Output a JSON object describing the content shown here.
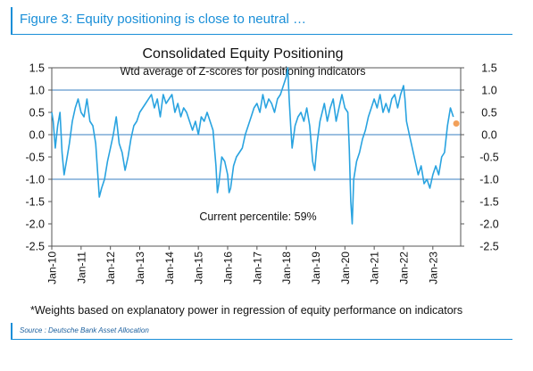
{
  "figure": {
    "title": "Figure 3: Equity positioning is close to neutral …",
    "footnote": "*Weights based on explanatory power in regression of equity performance on indicators",
    "source": "Source : Deutsche Bank Asset Allocation"
  },
  "colors": {
    "accent": "#1a8fd8",
    "line": "#29a3e0",
    "marker": "#f2a05a",
    "reference": "#3a7fc0"
  },
  "chart_data": {
    "type": "line",
    "title": "Consolidated Equity Positioning",
    "subtitle": "Wtd average of Z-scores for positioning indicators",
    "annotation": "Current percentile: 59%",
    "ylim": [
      -2.5,
      1.5
    ],
    "y_ticks": [
      "1.5",
      "1.0",
      "0.5",
      "0.0",
      "-0.5",
      "-1.0",
      "-1.5",
      "-2.0",
      "-2.5"
    ],
    "x_ticks": [
      "Jan-10",
      "Jan-11",
      "Jan-12",
      "Jan-13",
      "Jan-14",
      "Jan-15",
      "Jan-16",
      "Jan-17",
      "Jan-18",
      "Jan-19",
      "Jan-20",
      "Jan-21",
      "Jan-22",
      "Jan-23"
    ],
    "x_range": [
      2010.0,
      2023.95
    ],
    "reference_lines": [
      1.0,
      0.0,
      -1.0
    ],
    "grid": false,
    "series": [
      {
        "x": [
          2010.0,
          2010.05,
          2010.12,
          2010.2,
          2010.28,
          2010.35,
          2010.42,
          2010.5,
          2010.6,
          2010.7,
          2010.8,
          2010.9,
          2011.0,
          2011.1,
          2011.2,
          2011.3,
          2011.4,
          2011.5,
          2011.58,
          2011.62,
          2011.7,
          2011.8,
          2011.9,
          2012.0,
          2012.1,
          2012.2,
          2012.3,
          2012.4,
          2012.5,
          2012.6,
          2012.7,
          2012.8,
          2012.9,
          2013.0,
          2013.2,
          2013.4,
          2013.5,
          2013.6,
          2013.7,
          2013.8,
          2013.9,
          2014.0,
          2014.1,
          2014.2,
          2014.3,
          2014.4,
          2014.5,
          2014.6,
          2014.7,
          2014.8,
          2014.9,
          2015.0,
          2015.1,
          2015.2,
          2015.3,
          2015.4,
          2015.5,
          2015.6,
          2015.65,
          2015.7,
          2015.8,
          2015.9,
          2016.0,
          2016.05,
          2016.1,
          2016.2,
          2016.3,
          2016.4,
          2016.5,
          2016.6,
          2016.7,
          2016.8,
          2016.9,
          2017.0,
          2017.1,
          2017.2,
          2017.3,
          2017.4,
          2017.5,
          2017.6,
          2017.7,
          2017.8,
          2017.9,
          2018.0,
          2018.05,
          2018.1,
          2018.15,
          2018.2,
          2018.3,
          2018.4,
          2018.5,
          2018.6,
          2018.7,
          2018.8,
          2018.9,
          2018.97,
          2019.05,
          2019.15,
          2019.3,
          2019.4,
          2019.5,
          2019.6,
          2019.7,
          2019.8,
          2019.9,
          2020.0,
          2020.1,
          2020.15,
          2020.2,
          2020.25,
          2020.3,
          2020.4,
          2020.5,
          2020.6,
          2020.7,
          2020.8,
          2020.9,
          2021.0,
          2021.1,
          2021.2,
          2021.3,
          2021.4,
          2021.5,
          2021.6,
          2021.7,
          2021.8,
          2021.9,
          2022.0,
          2022.05,
          2022.1,
          2022.2,
          2022.3,
          2022.4,
          2022.5,
          2022.6,
          2022.7,
          2022.8,
          2022.9,
          2023.0,
          2023.1,
          2023.2,
          2023.3,
          2023.4,
          2023.5,
          2023.6,
          2023.7
        ],
        "values": [
          0.5,
          0.3,
          -0.3,
          0.2,
          0.5,
          -0.4,
          -0.9,
          -0.6,
          -0.2,
          0.3,
          0.6,
          0.8,
          0.5,
          0.4,
          0.8,
          0.3,
          0.2,
          -0.2,
          -1.0,
          -1.4,
          -1.2,
          -1.0,
          -0.6,
          -0.3,
          0.0,
          0.4,
          -0.2,
          -0.4,
          -0.8,
          -0.5,
          -0.1,
          0.2,
          0.3,
          0.5,
          0.7,
          0.9,
          0.6,
          0.8,
          0.4,
          0.9,
          0.7,
          0.8,
          0.9,
          0.5,
          0.7,
          0.4,
          0.6,
          0.5,
          0.3,
          0.1,
          0.3,
          0.0,
          0.4,
          0.3,
          0.5,
          0.3,
          0.1,
          -0.7,
          -1.3,
          -1.1,
          -0.5,
          -0.6,
          -0.9,
          -1.3,
          -1.2,
          -0.7,
          -0.5,
          -0.4,
          -0.3,
          0.0,
          0.2,
          0.4,
          0.6,
          0.7,
          0.5,
          0.9,
          0.6,
          0.8,
          0.7,
          0.5,
          0.8,
          0.9,
          1.1,
          1.3,
          1.5,
          0.8,
          0.2,
          -0.3,
          0.2,
          0.4,
          0.5,
          0.3,
          0.6,
          0.2,
          -0.6,
          -0.8,
          -0.2,
          0.3,
          0.7,
          0.3,
          0.6,
          0.8,
          0.3,
          0.6,
          0.9,
          0.6,
          0.5,
          -0.3,
          -1.5,
          -2.0,
          -1.0,
          -0.6,
          -0.4,
          -0.1,
          0.1,
          0.4,
          0.6,
          0.8,
          0.6,
          0.9,
          0.5,
          0.7,
          0.5,
          0.8,
          0.9,
          0.6,
          0.9,
          1.1,
          0.8,
          0.3,
          0.0,
          -0.3,
          -0.6,
          -0.9,
          -0.7,
          -1.1,
          -1.0,
          -1.2,
          -0.9,
          -0.7,
          -0.9,
          -0.5,
          -0.4,
          0.2,
          0.6,
          0.4
        ]
      }
    ],
    "current_point": {
      "x": 2023.8,
      "y": 0.25
    }
  }
}
